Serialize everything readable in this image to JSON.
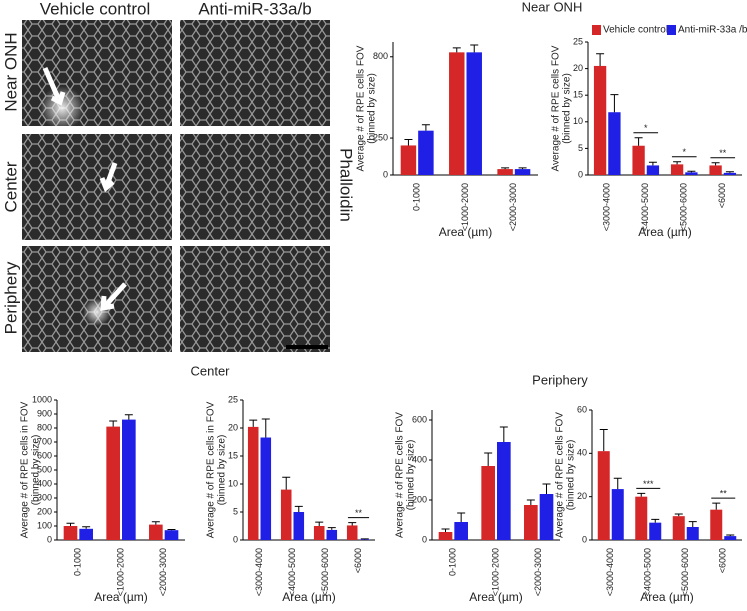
{
  "figure": {
    "column_labels": [
      "Vehicle control",
      "Anti-miR-33a/b"
    ],
    "row_labels": [
      "Near ONH",
      "Center",
      "Periphery"
    ],
    "stain_label": "Phalloidin"
  },
  "chart_data": [
    {
      "type": "bar",
      "title": "Near ONH",
      "ylabel": [
        "Average # of RPE cells FOV",
        "(binned by size)"
      ],
      "xlabel": "Area (µm)",
      "categories": [
        "0-1000",
        "<1000-2000",
        "<2000-3000"
      ],
      "ylim": [
        0,
        900
      ],
      "yticks": [
        0,
        250,
        800
      ],
      "series": [
        {
          "color": "#d62728",
          "values": [
            200,
            830,
            40
          ],
          "errors": [
            40,
            30,
            8
          ]
        },
        {
          "color": "#1f1fe6",
          "values": [
            300,
            830,
            40
          ],
          "errors": [
            40,
            50,
            8
          ]
        }
      ]
    },
    {
      "type": "bar",
      "ylabel": [
        "Average # of RPE cells FOV",
        "(binned by size)"
      ],
      "xlabel": "Area (µm)",
      "legend": "top-right",
      "categories": [
        "<3000-4000",
        "<4000-5000",
        "<5000-6000",
        "<6000"
      ],
      "ylim": [
        0,
        25
      ],
      "yticks": [
        0,
        5,
        10,
        15,
        20,
        25
      ],
      "significance": [
        null,
        "*",
        "*",
        "**"
      ],
      "series": [
        {
          "name": "Vehicle control",
          "color": "#d62728",
          "values": [
            20.5,
            5.5,
            2,
            1.8
          ],
          "errors": [
            2.3,
            1.5,
            0.5,
            0.5
          ]
        },
        {
          "name": "Anti-miR-33a /b",
          "color": "#1f1fe6",
          "values": [
            11.8,
            1.8,
            0.5,
            0.4
          ],
          "errors": [
            3.3,
            0.6,
            0.2,
            0.2
          ]
        }
      ]
    },
    {
      "type": "bar",
      "title": "Center",
      "ylabel": [
        "Average # of RPE cells in  FOV",
        "(binned by size)"
      ],
      "xlabel": "Area (µm)",
      "categories": [
        "0-1000",
        "<1000-2000",
        "<2000-3000"
      ],
      "ylim": [
        0,
        1000
      ],
      "yticks": [
        0,
        100,
        200,
        300,
        400,
        500,
        600,
        700,
        800,
        900,
        1000
      ],
      "series": [
        {
          "color": "#d62728",
          "values": [
            100,
            810,
            110
          ],
          "errors": [
            20,
            40,
            20
          ]
        },
        {
          "color": "#1f1fe6",
          "values": [
            80,
            860,
            70
          ],
          "errors": [
            15,
            35,
            5
          ]
        }
      ]
    },
    {
      "type": "bar",
      "ylabel": [
        "Average # of RPE cells in FOV",
        "(binned by size)"
      ],
      "xlabel": "Area (µm)",
      "categories": [
        "<3000-4000",
        "<4000-5000",
        "<5000-6000",
        "<6000"
      ],
      "ylim": [
        0,
        25
      ],
      "yticks": [
        0,
        5,
        10,
        15,
        20,
        25
      ],
      "significance": [
        null,
        null,
        null,
        "**"
      ],
      "series": [
        {
          "color": "#d62728",
          "values": [
            20.2,
            9,
            2.5,
            2.6
          ],
          "errors": [
            1.2,
            2.2,
            0.7,
            0.5
          ]
        },
        {
          "color": "#1f1fe6",
          "values": [
            18.3,
            5,
            1.8,
            0.1
          ],
          "errors": [
            3.3,
            1,
            0.4,
            0.1
          ]
        }
      ]
    },
    {
      "type": "bar",
      "title": "Periphery",
      "ylabel": [
        "Average # of RPE cells FOV",
        "(binned by size)"
      ],
      "xlabel": "Area (µm)",
      "categories": [
        "0-1000",
        "<1000-2000",
        "<2000-3000"
      ],
      "ylim": [
        0,
        650
      ],
      "yticks": [
        0,
        200,
        400,
        600
      ],
      "series": [
        {
          "color": "#d62728",
          "values": [
            40,
            370,
            175
          ],
          "errors": [
            15,
            65,
            25
          ]
        },
        {
          "color": "#1f1fe6",
          "values": [
            90,
            490,
            230
          ],
          "errors": [
            45,
            75,
            50
          ]
        }
      ]
    },
    {
      "type": "bar",
      "ylabel": [
        "Average # of RPE cells FOV",
        "(binned by size)"
      ],
      "xlabel": "Area (µm)",
      "categories": [
        "<3000-4000",
        "<4000-5000",
        "<5000-6000",
        "<6000"
      ],
      "ylim": [
        0,
        60
      ],
      "yticks": [
        0,
        20,
        40,
        60
      ],
      "significance": [
        null,
        "***",
        null,
        "**"
      ],
      "series": [
        {
          "color": "#d62728",
          "values": [
            41,
            20,
            11,
            14
          ],
          "errors": [
            10,
            1.5,
            1,
            3
          ]
        },
        {
          "color": "#1f1fe6",
          "values": [
            23.5,
            8,
            6,
            1.8
          ],
          "errors": [
            5,
            1.5,
            2.5,
            0.5
          ]
        }
      ]
    }
  ]
}
